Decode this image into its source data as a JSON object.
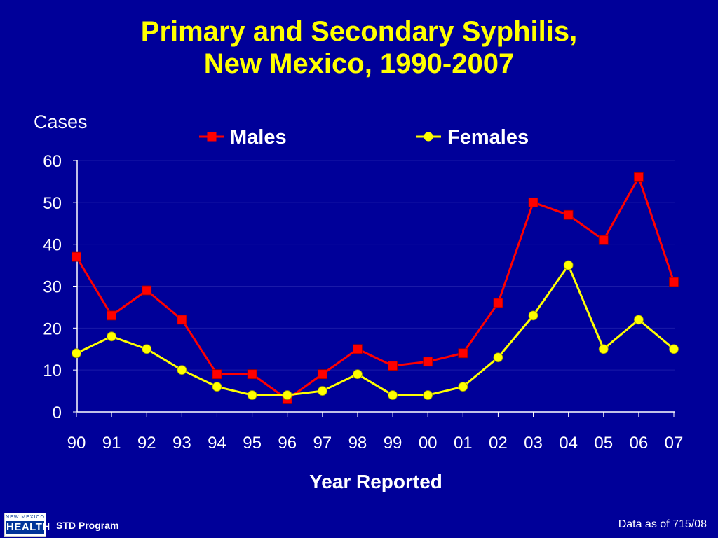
{
  "footer": {
    "logo_small": "NEW MEXICO",
    "logo_big": "HEALTH",
    "program": "STD Program",
    "data_as_of": "Data as of 715/08"
  },
  "colors": {
    "background": "#000099",
    "title": "#ffff00",
    "males": "#ff0000",
    "females": "#ffff00",
    "text": "#ffffff"
  },
  "chart_data": {
    "type": "line",
    "title_line1": "Primary and Secondary Syphilis,",
    "title_line2": "New Mexico, 1990-2007",
    "ylabel": "Cases",
    "xlabel": "Year Reported",
    "ylim": [
      0,
      60
    ],
    "yticks": [
      0,
      10,
      20,
      30,
      40,
      50,
      60
    ],
    "grid": "horizontal",
    "legend_position": "top",
    "categories": [
      "90",
      "91",
      "92",
      "93",
      "94",
      "95",
      "96",
      "97",
      "98",
      "99",
      "00",
      "01",
      "02",
      "03",
      "04",
      "05",
      "06",
      "07"
    ],
    "series": [
      {
        "name": "Males",
        "marker": "square",
        "color": "#ff0000",
        "values": [
          37,
          23,
          29,
          22,
          9,
          9,
          3,
          9,
          15,
          11,
          12,
          14,
          26,
          50,
          47,
          41,
          56,
          31
        ]
      },
      {
        "name": "Females",
        "marker": "circle",
        "color": "#ffff00",
        "values": [
          14,
          18,
          15,
          10,
          6,
          4,
          4,
          5,
          9,
          4,
          4,
          6,
          13,
          23,
          35,
          15,
          22,
          15
        ]
      }
    ]
  }
}
